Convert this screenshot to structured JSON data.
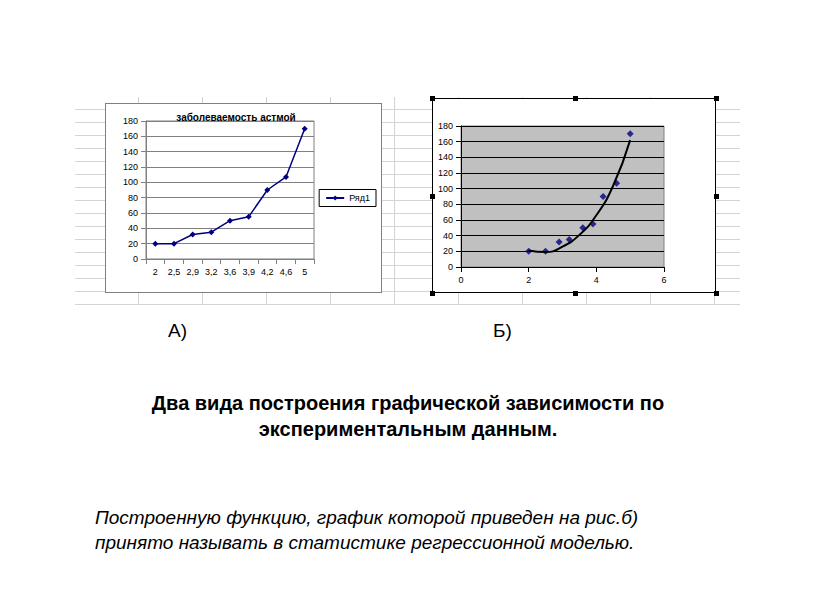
{
  "chart_data": [
    {
      "type": "line",
      "title": "заболеваемость астмой",
      "categories": [
        "2",
        "2,5",
        "2,9",
        "3,2",
        "3,6",
        "3,9",
        "4,2",
        "4,6",
        "5"
      ],
      "series": [
        {
          "name": "Ряд1",
          "color": "#000080",
          "marker": "diamond",
          "line_style": "solid",
          "values": [
            20,
            20,
            32,
            35,
            50,
            55,
            90,
            107,
            170
          ]
        }
      ],
      "ylim": [
        0,
        180
      ],
      "yticks": [
        0,
        20,
        40,
        60,
        80,
        100,
        120,
        140,
        160,
        180
      ],
      "grid": true,
      "legend": "right"
    },
    {
      "type": "scatter",
      "series": [
        {
          "type": "scatter",
          "color": "#000080",
          "marker": "diamond",
          "x": [
            2,
            2.5,
            2.9,
            3.2,
            3.6,
            3.9,
            4.2,
            4.6,
            5
          ],
          "values": [
            20,
            20,
            32,
            35,
            50,
            55,
            90,
            107,
            170
          ]
        },
        {
          "type": "line",
          "color": "#000000",
          "line_style": "solid",
          "x": [
            2,
            2.5,
            3,
            3.5,
            4,
            4.5,
            5
          ],
          "values": [
            21,
            19,
            26,
            41,
            66,
            104,
            162
          ]
        }
      ],
      "xlim": [
        0,
        6
      ],
      "xticks": [
        0,
        2,
        4,
        6
      ],
      "ylim": [
        0,
        180
      ],
      "yticks": [
        0,
        20,
        40,
        60,
        80,
        100,
        120,
        140,
        160,
        180
      ],
      "grid": true
    }
  ],
  "panel_labels": [
    "А)",
    "Б)"
  ],
  "heading": "Два вида построения графической зависимости по экспериментальным данным.",
  "note": "Построенную функцию, график которой приведен на рис.б) принято называть в статистике регрессионной моделью."
}
